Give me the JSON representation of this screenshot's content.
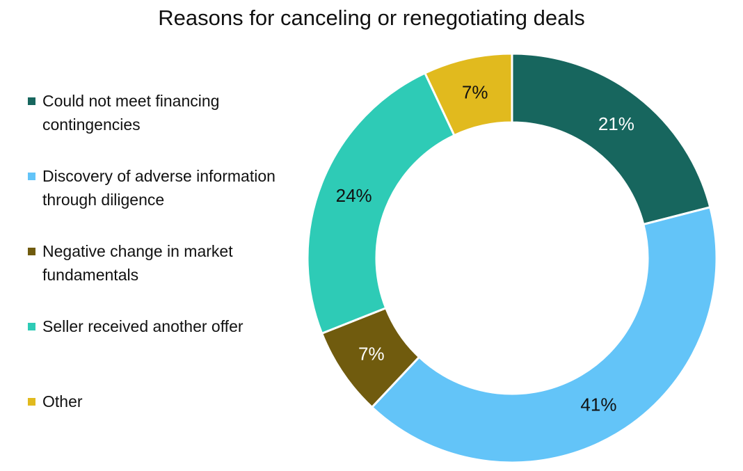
{
  "chart_data": {
    "type": "pie",
    "title": "Reasons for canceling or renegotiating deals",
    "categories": [
      "Could not meet financing contingencies",
      "Discovery of adverse information through diligence",
      "Negative change in market fundamentals",
      "Seller received another offer",
      "Other"
    ],
    "legend_labels": [
      "Could not meet financing\ncontingencies",
      "Discovery of adverse information\nthrough diligence",
      "Negative change in market\nfundamentals",
      "Seller received another offer",
      "Other"
    ],
    "values": [
      21,
      41,
      7,
      24,
      7
    ],
    "data_labels": [
      "21%",
      "41%",
      "7%",
      "24%",
      "7%"
    ],
    "colors": [
      "#17665e",
      "#63c4f8",
      "#705b0e",
      "#2ecbb6",
      "#e1ba1e"
    ],
    "label_colors": [
      "#ffffff",
      "#111111",
      "#ffffff",
      "#111111",
      "#111111"
    ],
    "legend_position": "left",
    "donut": true
  }
}
